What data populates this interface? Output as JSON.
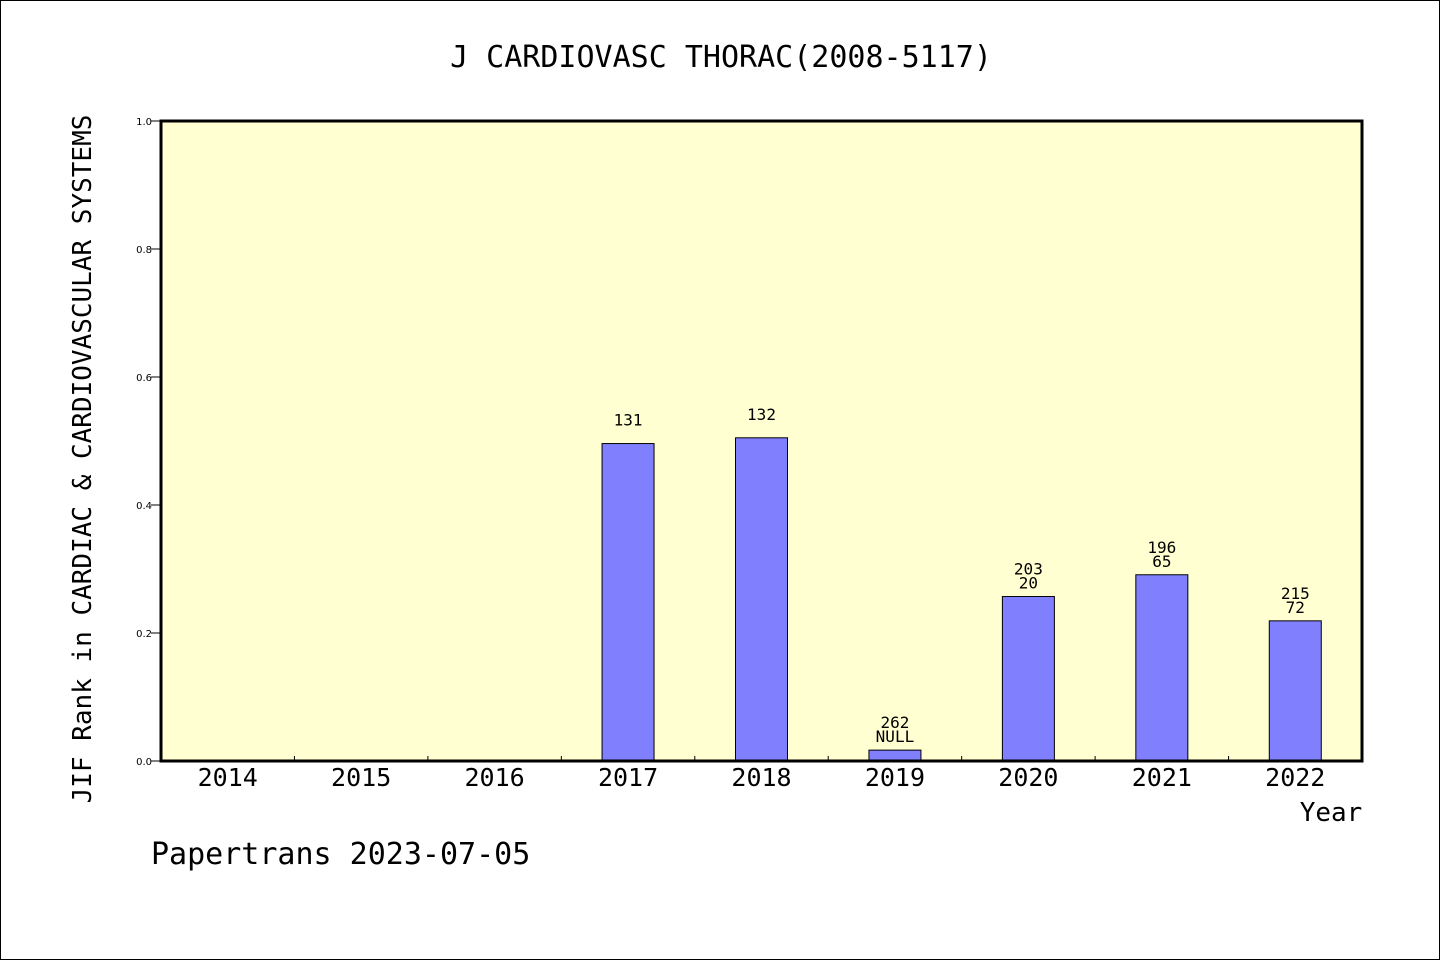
{
  "chart_data": {
    "type": "bar",
    "title": "J CARDIOVASC THORAC(2008-5117)",
    "xlabel": "Year",
    "ylabel": "JIF Rank in CARDIAC & CARDIOVASCULAR SYSTEMS",
    "ylim": [
      0,
      1.0
    ],
    "yticks": [
      "0.0",
      "0.2",
      "0.4",
      "0.6",
      "0.8",
      "1.0"
    ],
    "categories": [
      "2014",
      "2015",
      "2016",
      "2017",
      "2018",
      "2019",
      "2020",
      "2021",
      "2022"
    ],
    "values": [
      null,
      null,
      null,
      0.496,
      0.505,
      0.017,
      0.257,
      0.291,
      0.219
    ],
    "labels": [
      [],
      [],
      [],
      [
        "131"
      ],
      [
        "132"
      ],
      [
        "262",
        "NULL"
      ],
      [
        "203",
        "20"
      ],
      [
        "196",
        "65"
      ],
      [
        "215",
        "72"
      ]
    ],
    "grid": false,
    "colors": {
      "plot_background": "#ffffd1",
      "bar_fill": "#8080ff",
      "bar_stroke": "#000000"
    }
  },
  "footer": {
    "source": "Papertrans 2023-07-05"
  }
}
